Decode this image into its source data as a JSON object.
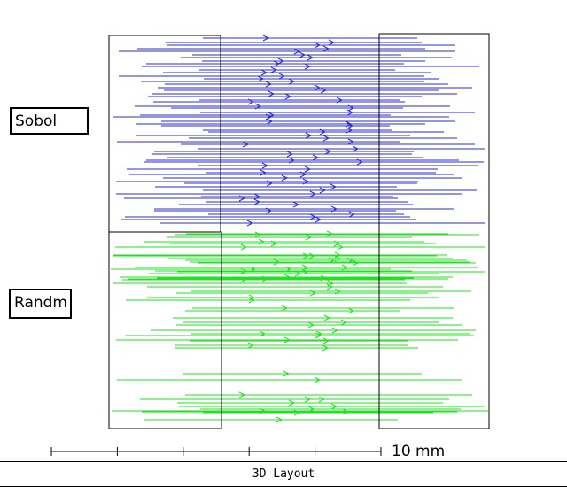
{
  "layout": {
    "title": "3D Layout",
    "labels": {
      "top": "Sobol",
      "bottom": "Randm"
    },
    "scale": {
      "text": "10 mm",
      "ticks": 6
    },
    "colors": {
      "sobol": "#2a2ad0",
      "random": "#22e022",
      "frame": "#000000",
      "background": "#ffffff"
    },
    "icons": {
      "ray_direction": "arrow-right-icon"
    }
  }
}
